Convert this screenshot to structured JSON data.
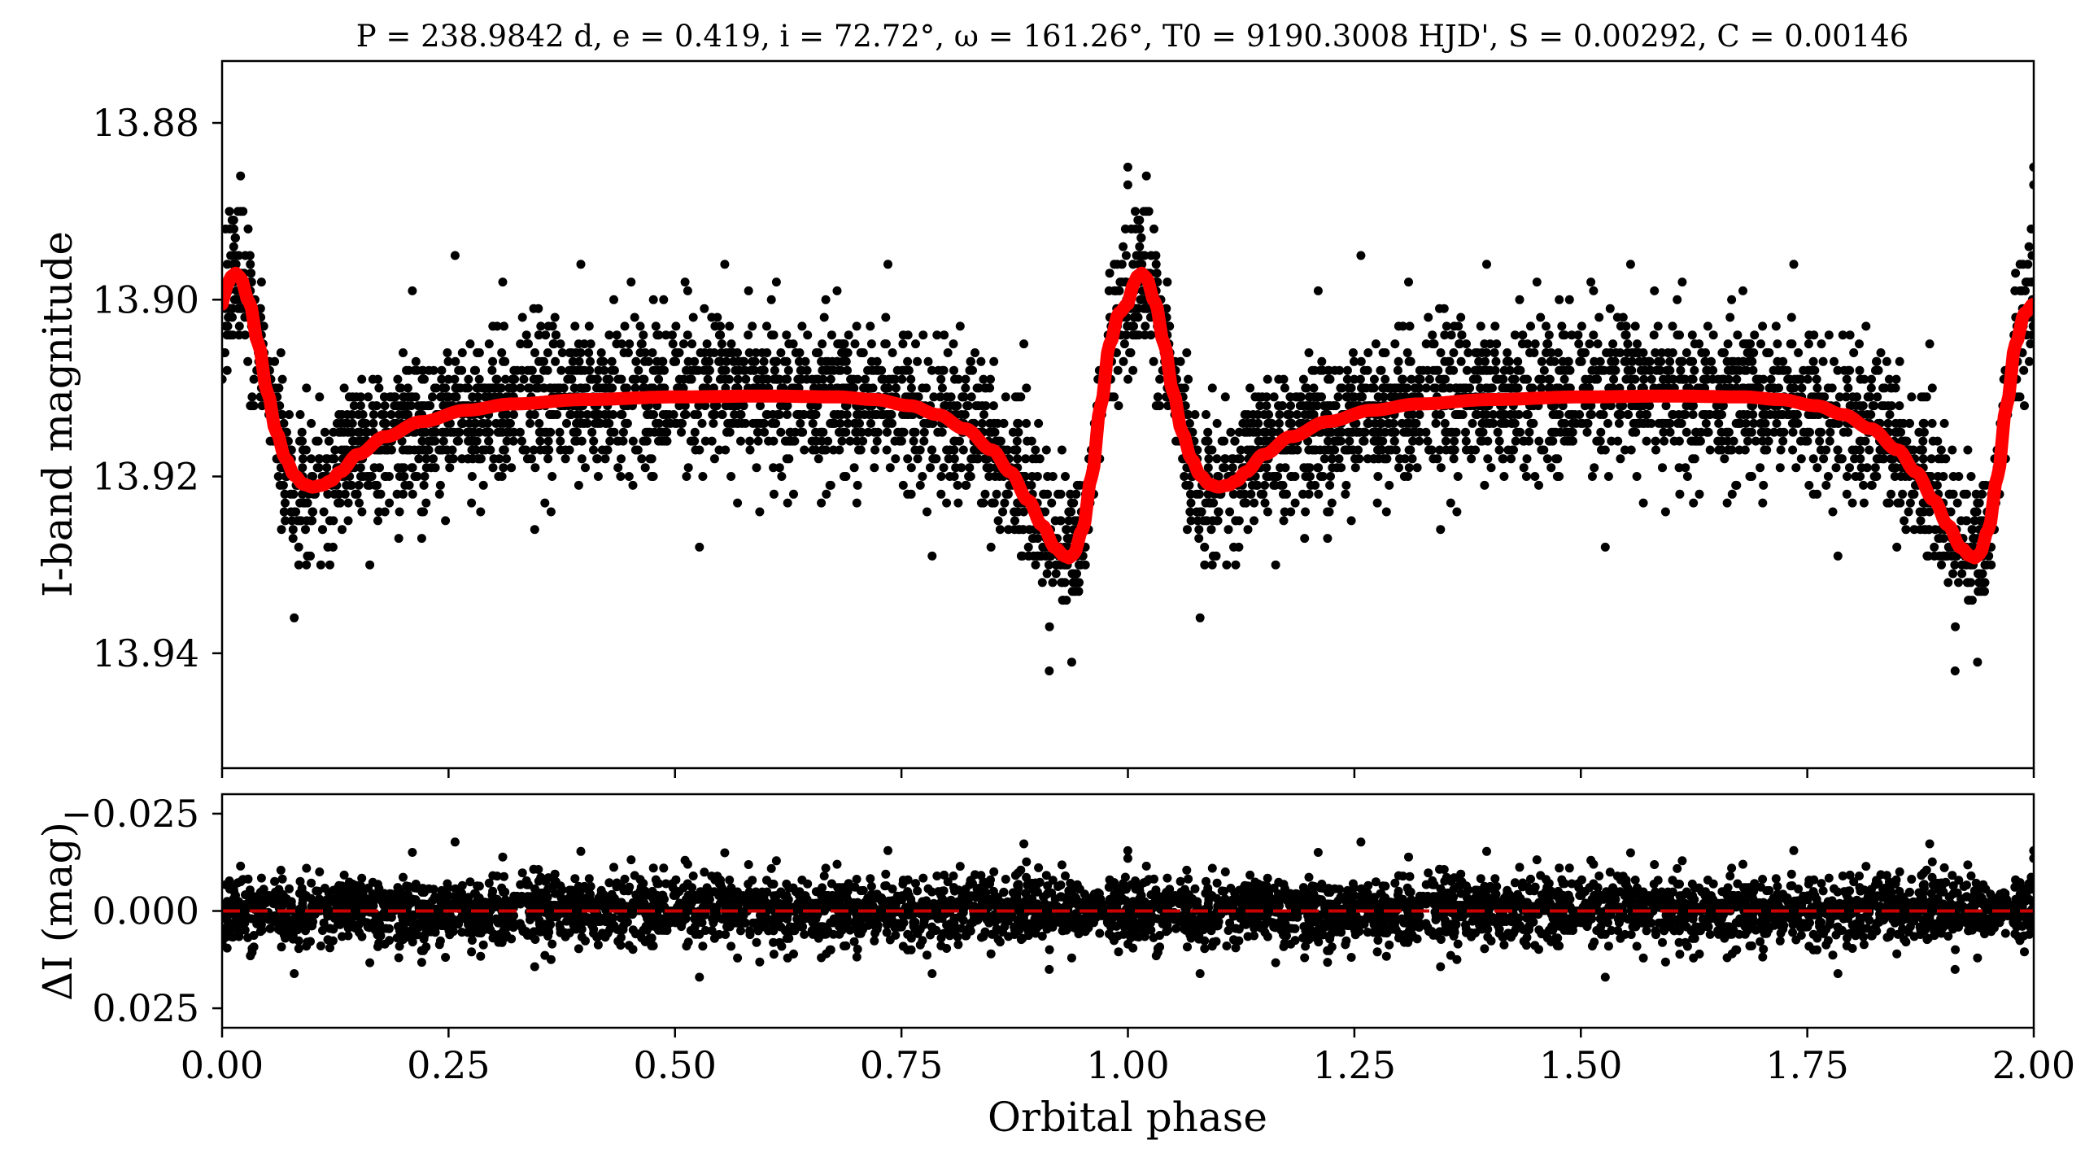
{
  "chart_data": [
    {
      "type": "scatter",
      "panel": "main",
      "title": "P = 238.9842 d, e = 0.419, i = 72.72°, ω = 161.26°, T0 = 9190.3008 HJD', S = 0.00292, C = 0.00146",
      "title_parts": {
        "P": "238.9842 d",
        "e": "0.419",
        "i": "72.72°",
        "omega": "161.26°",
        "T0": "9190.3008 HJD'",
        "S": "0.00292",
        "C": "0.00146"
      },
      "ylabel": "I-band magnitude",
      "xlim": [
        0.0,
        2.0
      ],
      "ylim": [
        13.953,
        13.873
      ],
      "y_inverted": true,
      "yticks": [
        13.88,
        13.9,
        13.92,
        13.94
      ],
      "ytick_labels": [
        "13.88",
        "13.90",
        "13.92",
        "13.94"
      ],
      "grid": false,
      "legend": "none",
      "point_color": "#000000",
      "model_color": "#ff0000",
      "model_params": {
        "period_days": 238.9842,
        "eccentricity": 0.419,
        "omega_deg": 161.26,
        "baseline_mag": 13.911,
        "primary_min_phase": 0.935,
        "primary_min_mag": 13.929,
        "secondary_min_phase": 0.115,
        "secondary_min_mag": 13.921,
        "peak_phase": 0.015,
        "peak_mag": 13.897
      },
      "model_curve": {
        "x": [
          0.0,
          0.005,
          0.01,
          0.015,
          0.02,
          0.03,
          0.04,
          0.05,
          0.06,
          0.07,
          0.08,
          0.09,
          0.1,
          0.11,
          0.12,
          0.13,
          0.15,
          0.18,
          0.22,
          0.27,
          0.32,
          0.4,
          0.5,
          0.6,
          0.68,
          0.72,
          0.76,
          0.79,
          0.82,
          0.85,
          0.87,
          0.89,
          0.905,
          0.92,
          0.93,
          0.935,
          0.94,
          0.95,
          0.96,
          0.97,
          0.98,
          0.99,
          1.0
        ],
        "y": [
          13.9005,
          13.8985,
          13.8974,
          13.897,
          13.8975,
          13.9003,
          13.905,
          13.9105,
          13.915,
          13.918,
          13.9199,
          13.9209,
          13.9212,
          13.921,
          13.9205,
          13.9195,
          13.9175,
          13.9155,
          13.9138,
          13.9125,
          13.9118,
          13.9113,
          13.911,
          13.9109,
          13.911,
          13.9113,
          13.912,
          13.913,
          13.9146,
          13.917,
          13.9195,
          13.9227,
          13.9255,
          13.9281,
          13.929,
          13.9292,
          13.9288,
          13.926,
          13.92,
          13.912,
          13.905,
          13.9015,
          13.9005
        ]
      },
      "data_points_note": "approximately 2200 observed points per cycle, scatter about the model with sigma ~0.004 mag; plotted repeated over two cycles (phase 0-2)"
    },
    {
      "type": "scatter",
      "panel": "residuals",
      "ylabel": "ΔI (mag)",
      "xlabel": "Orbital phase",
      "xlim": [
        0.0,
        2.0
      ],
      "ylim": [
        0.03,
        -0.03
      ],
      "y_inverted": true,
      "yticks": [
        -0.025,
        0.0,
        0.025
      ],
      "ytick_labels": [
        "−0.025",
        "0.000",
        "0.025"
      ],
      "xticks": [
        0.0,
        0.25,
        0.5,
        0.75,
        1.0,
        1.25,
        1.5,
        1.75,
        2.0
      ],
      "xtick_labels": [
        "0.00",
        "0.25",
        "0.50",
        "0.75",
        "1.00",
        "1.25",
        "1.50",
        "1.75",
        "2.00"
      ],
      "zero_line": {
        "value": 0.0,
        "color": "#cc0000",
        "style": "dashed"
      },
      "grid": false,
      "legend": "none"
    }
  ]
}
